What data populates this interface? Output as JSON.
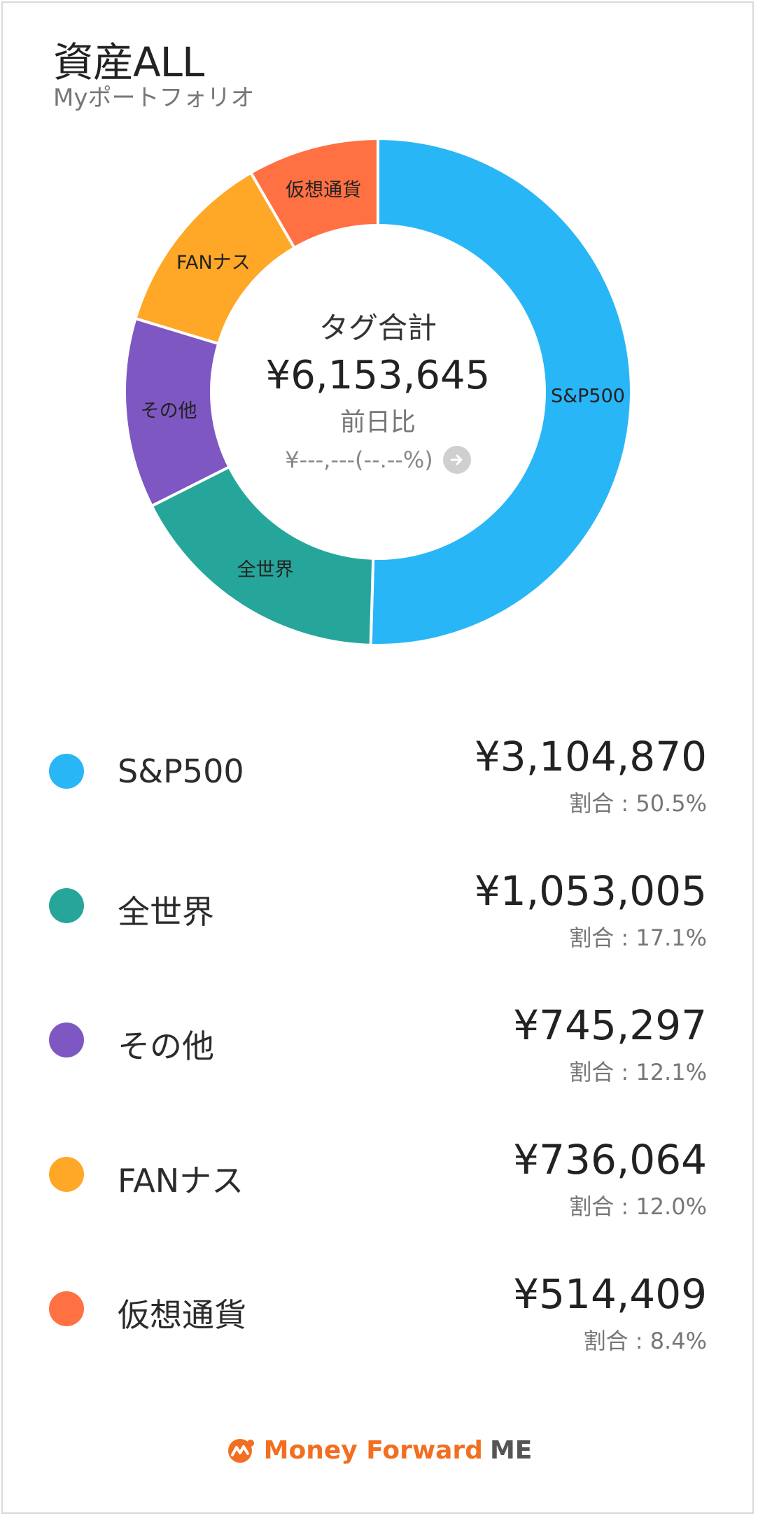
{
  "header": {
    "title": "資産ALL",
    "subtitle": "Myポートフォリオ"
  },
  "center": {
    "label": "タグ合計",
    "total": "¥6,153,645",
    "compare_label": "前日比",
    "change": "¥---,---(--.--%)",
    "arrow_icon": "arrow-right-circle-icon"
  },
  "chart_data": {
    "type": "pie",
    "style": "donut",
    "categories": [
      "S&P500",
      "全世界",
      "その他",
      "FANナス",
      "仮想通貨"
    ],
    "values": [
      3104870,
      1053005,
      745297,
      736064,
      514409
    ],
    "colors": [
      "#29b6f6",
      "#26a69a",
      "#7e57c2",
      "#ffa726",
      "#ff7043"
    ]
  },
  "legend": [
    {
      "name": "S&P500",
      "value": "¥3,104,870",
      "ratio": "割合 : 50.5%",
      "color": "#29b6f6"
    },
    {
      "name": "全世界",
      "value": "¥1,053,005",
      "ratio": "割合 : 17.1%",
      "color": "#26a69a"
    },
    {
      "name": "その他",
      "value": "¥745,297",
      "ratio": "割合 : 12.1%",
      "color": "#7e57c2"
    },
    {
      "name": "FANナス",
      "value": "¥736,064",
      "ratio": "割合 : 12.0%",
      "color": "#ffa726"
    },
    {
      "name": "仮想通貨",
      "value": "¥514,409",
      "ratio": "割合 : 8.4%",
      "color": "#ff7043"
    }
  ],
  "footer": {
    "brand": "Money Forward",
    "brand_suffix": "ME",
    "logo_icon": "money-forward-logo-icon"
  }
}
